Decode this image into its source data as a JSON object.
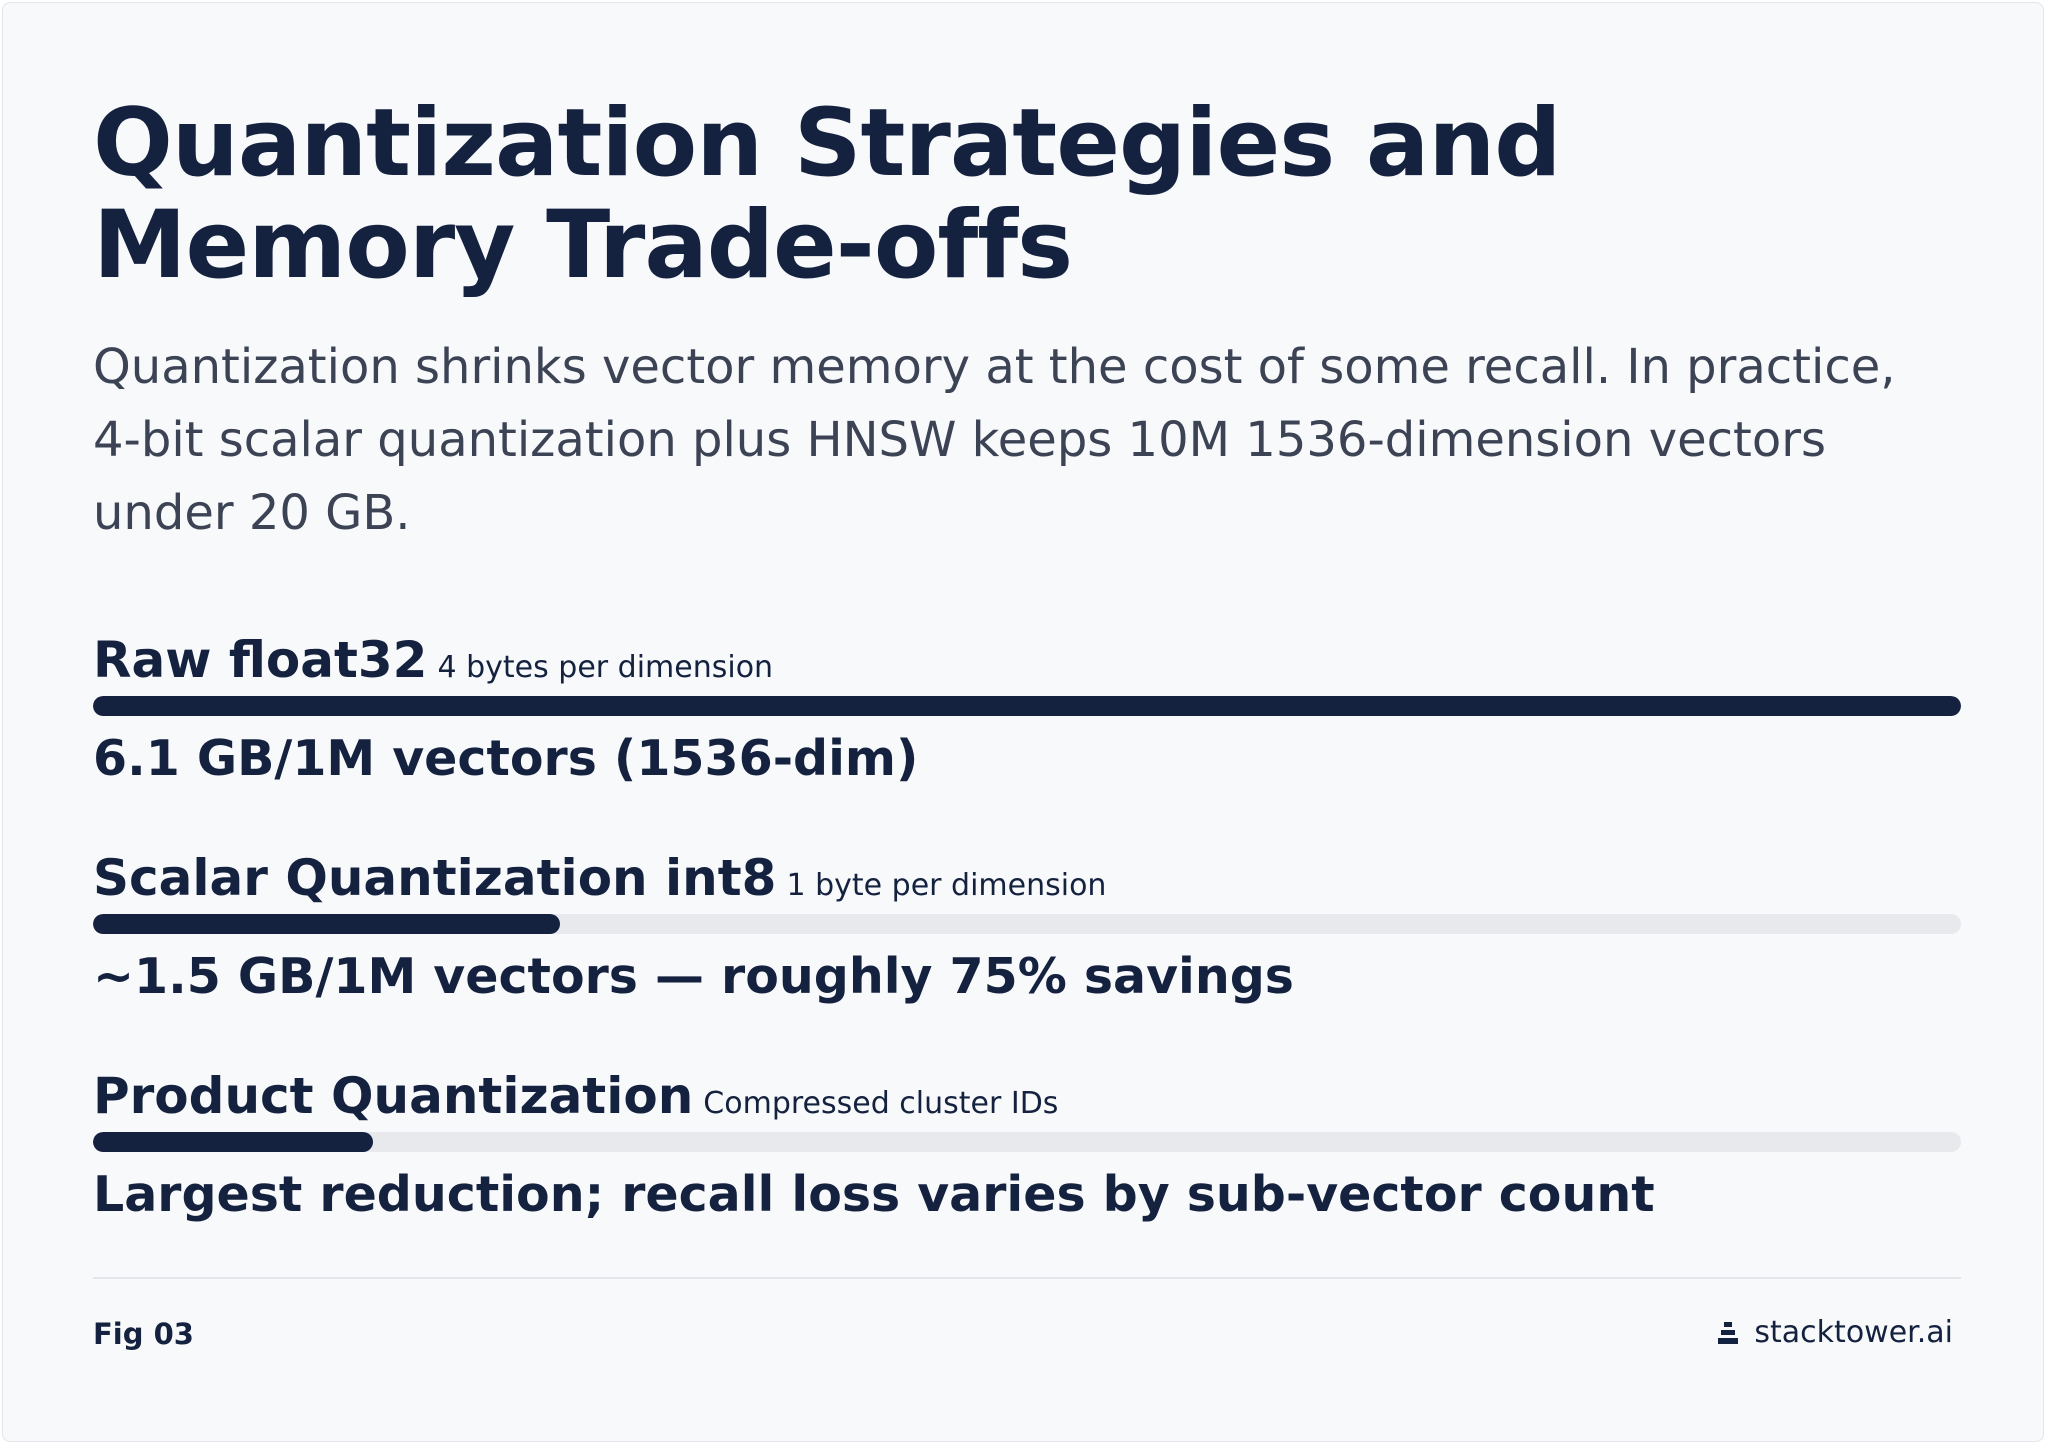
{
  "title": "Quantization Strategies and Memory Trade-offs",
  "subtitle": "Quantization shrinks vector memory at the cost of some recall. In practice, 4-bit scalar quantization plus HNSW keeps 10M 1536-dimension vectors under 20 GB.",
  "chart_data": {
    "type": "bar",
    "orientation": "horizontal",
    "categories": [
      "Raw float32",
      "Scalar Quantization int8",
      "Product Quantization"
    ],
    "sublabels": [
      "4 bytes per dimension",
      "1 byte per dimension",
      "Compressed cluster IDs"
    ],
    "values": [
      100,
      25,
      15
    ],
    "value_labels": [
      "6.1 GB/1M vectors (1536-dim)",
      "~1.5 GB/1M vectors — roughly 75% savings",
      "Largest reduction; recall loss varies by sub-vector count"
    ],
    "xlim": [
      0,
      100
    ],
    "grid": false,
    "legend": "none",
    "colors": {
      "fill": "#15223f",
      "track": "#e8e9ec"
    }
  },
  "footer": {
    "figure_label": "Fig 03",
    "brand": "stacktower.ai",
    "brand_icon": "stack-icon"
  }
}
